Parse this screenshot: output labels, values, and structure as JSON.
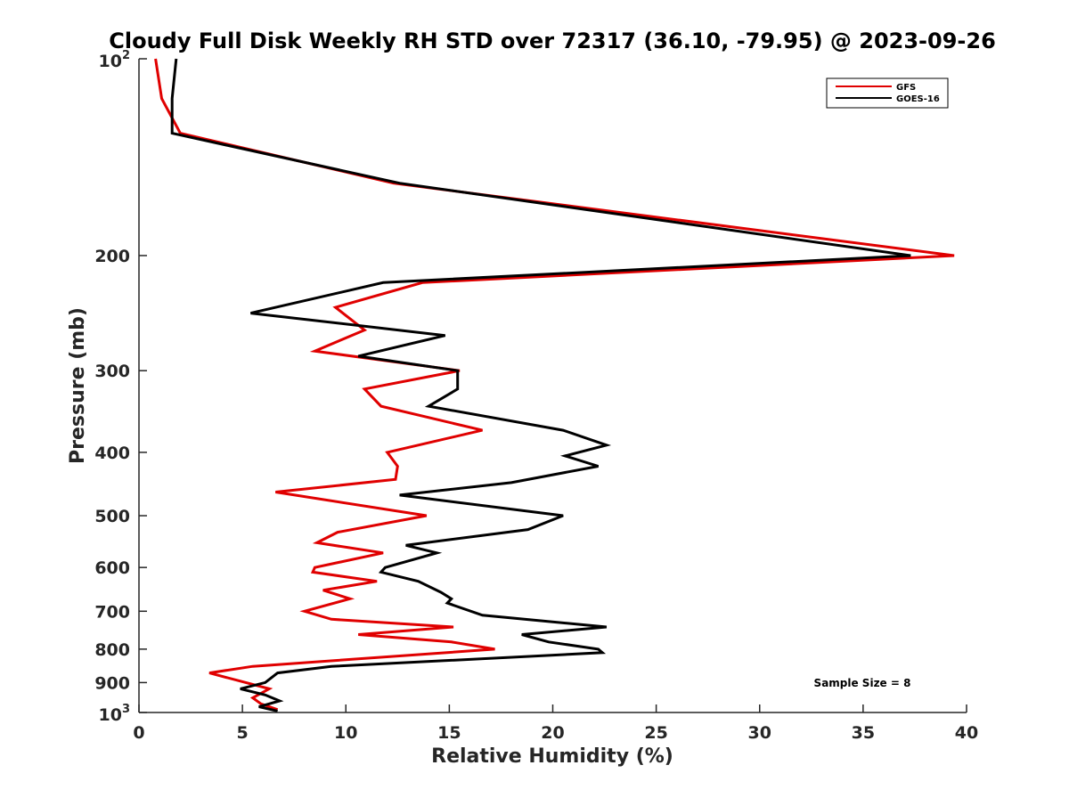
{
  "chart_data": {
    "type": "line",
    "title": "Cloudy Full Disk Weekly RH STD over 72317 (36.10, -79.95) @ 2023-09-26",
    "xlabel": "Relative Humidity (%)",
    "ylabel": "Pressure (mb)",
    "xlim": [
      0,
      40
    ],
    "ylim": [
      100,
      1000
    ],
    "yscale": "log",
    "y_reversed": true,
    "grid": false,
    "legend_position": "top-right",
    "x_ticks": [
      "0",
      "5",
      "10",
      "15",
      "20",
      "25",
      "30",
      "35",
      "40"
    ],
    "y_ticks": [
      {
        "value": 100,
        "base": "10",
        "exp": "2"
      },
      {
        "value": 200,
        "label": "200"
      },
      {
        "value": 300,
        "label": "300"
      },
      {
        "value": 400,
        "label": "400"
      },
      {
        "value": 500,
        "label": "500"
      },
      {
        "value": 600,
        "label": "600"
      },
      {
        "value": 700,
        "label": "700"
      },
      {
        "value": 800,
        "label": "800"
      },
      {
        "value": 900,
        "label": "900"
      },
      {
        "value": 1000,
        "base": "10",
        "exp": "3"
      }
    ],
    "annotation": "Sample Size = 8",
    "series": [
      {
        "name": "GFS",
        "color": "#e00000",
        "points": [
          [
            0.8,
            100
          ],
          [
            1.1,
            115
          ],
          [
            2.0,
            130
          ],
          [
            12.3,
            155
          ],
          [
            39.4,
            200
          ],
          [
            13.7,
            220
          ],
          [
            9.5,
            240
          ],
          [
            10.9,
            260
          ],
          [
            8.5,
            280
          ],
          [
            15.5,
            300
          ],
          [
            10.9,
            320
          ],
          [
            11.7,
            340
          ],
          [
            16.6,
            370
          ],
          [
            12.0,
            400
          ],
          [
            12.5,
            420
          ],
          [
            12.4,
            440
          ],
          [
            6.6,
            460
          ],
          [
            13.9,
            500
          ],
          [
            9.6,
            530
          ],
          [
            8.6,
            550
          ],
          [
            11.8,
            570
          ],
          [
            8.5,
            600
          ],
          [
            8.4,
            610
          ],
          [
            11.5,
            630
          ],
          [
            8.9,
            650
          ],
          [
            10.2,
            670
          ],
          [
            8.0,
            700
          ],
          [
            9.3,
            720
          ],
          [
            15.2,
            740
          ],
          [
            10.6,
            760
          ],
          [
            15.1,
            780
          ],
          [
            17.2,
            800
          ],
          [
            5.5,
            850
          ],
          [
            3.4,
            870
          ],
          [
            6.3,
            920
          ],
          [
            5.5,
            950
          ],
          [
            5.9,
            970
          ],
          [
            6.7,
            990
          ]
        ]
      },
      {
        "name": "GOES-16",
        "color": "#000000",
        "points": [
          [
            1.8,
            100
          ],
          [
            1.6,
            115
          ],
          [
            1.6,
            130
          ],
          [
            12.6,
            155
          ],
          [
            37.3,
            200
          ],
          [
            11.8,
            220
          ],
          [
            5.4,
            245
          ],
          [
            14.8,
            265
          ],
          [
            10.6,
            285
          ],
          [
            15.4,
            300
          ],
          [
            15.4,
            320
          ],
          [
            14.0,
            340
          ],
          [
            20.5,
            370
          ],
          [
            22.6,
            390
          ],
          [
            20.6,
            405
          ],
          [
            22.2,
            420
          ],
          [
            18.0,
            445
          ],
          [
            12.6,
            465
          ],
          [
            20.5,
            500
          ],
          [
            18.8,
            525
          ],
          [
            12.9,
            555
          ],
          [
            14.4,
            570
          ],
          [
            11.9,
            600
          ],
          [
            11.7,
            610
          ],
          [
            13.5,
            630
          ],
          [
            14.6,
            655
          ],
          [
            15.1,
            670
          ],
          [
            14.9,
            680
          ],
          [
            16.6,
            710
          ],
          [
            22.6,
            740
          ],
          [
            18.5,
            760
          ],
          [
            19.8,
            780
          ],
          [
            22.2,
            800
          ],
          [
            22.4,
            810
          ],
          [
            9.3,
            850
          ],
          [
            6.7,
            870
          ],
          [
            6.1,
            900
          ],
          [
            4.9,
            920
          ],
          [
            6.1,
            940
          ],
          [
            6.8,
            960
          ],
          [
            5.8,
            980
          ],
          [
            6.7,
            995
          ]
        ]
      }
    ]
  }
}
